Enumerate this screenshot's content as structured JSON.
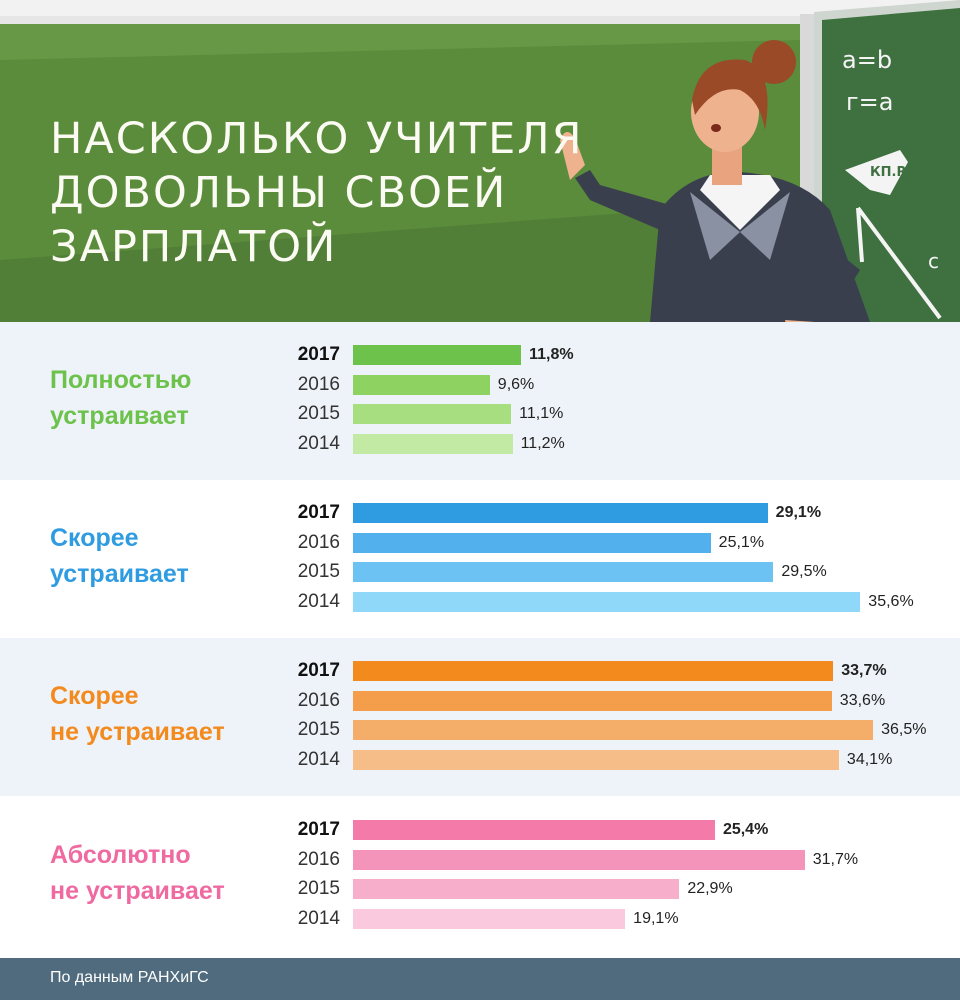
{
  "header": {
    "title_lines": [
      "Насколько учителя",
      "довольны своей",
      "зарплатой"
    ],
    "board_writing": [
      "a=b",
      "г=a",
      "c"
    ],
    "logo_text": "КП.RU"
  },
  "colors": {
    "board": "#5a8c3c",
    "board_right": "#3e6b3a",
    "footer": "#4f6b7d"
  },
  "chart_data": {
    "type": "bar",
    "orientation": "horizontal",
    "title": "Насколько учителя довольны своей зарплатой",
    "years": [
      "2017",
      "2016",
      "2015",
      "2014"
    ],
    "unit": "%",
    "categories": [
      {
        "name_lines": [
          "Полностью",
          "устраивает"
        ],
        "color": "#6cc24a",
        "bar_colors": [
          "#6cc24a",
          "#8ed362",
          "#a7df80",
          "#c3eaa5"
        ],
        "values": [
          11.8,
          9.6,
          11.1,
          11.2
        ],
        "labels": [
          "11,8%",
          "9,6%",
          "11,1%",
          "11,2%"
        ]
      },
      {
        "name_lines": [
          "Скорее",
          "устраивает"
        ],
        "color": "#2f9be0",
        "bar_colors": [
          "#2f9be0",
          "#52b1ec",
          "#6cc3f3",
          "#8fd8f9"
        ],
        "values": [
          29.1,
          25.1,
          29.5,
          35.6
        ],
        "labels": [
          "29,1%",
          "25,1%",
          "29,5%",
          "35,6%"
        ]
      },
      {
        "name_lines": [
          "Скорее",
          "не устраивает"
        ],
        "color": "#f28a1e",
        "bar_colors": [
          "#f28a1e",
          "#f49d4a",
          "#f5ad6a",
          "#f7bd88"
        ],
        "values": [
          33.7,
          33.6,
          36.5,
          34.1
        ],
        "labels": [
          "33,7%",
          "33,6%",
          "36,5%",
          "34,1%"
        ]
      },
      {
        "name_lines": [
          "Абсолютно",
          "не устраивает"
        ],
        "color": "#ee6aa0",
        "bar_colors": [
          "#f47aa9",
          "#f594ba",
          "#f7aecb",
          "#fac9dd"
        ],
        "values": [
          25.4,
          31.7,
          22.9,
          19.1
        ],
        "labels": [
          "25,4%",
          "31,7%",
          "22,9%",
          "19,1%"
        ]
      }
    ]
  },
  "footer": {
    "source": "По данным РАНХиГС"
  }
}
